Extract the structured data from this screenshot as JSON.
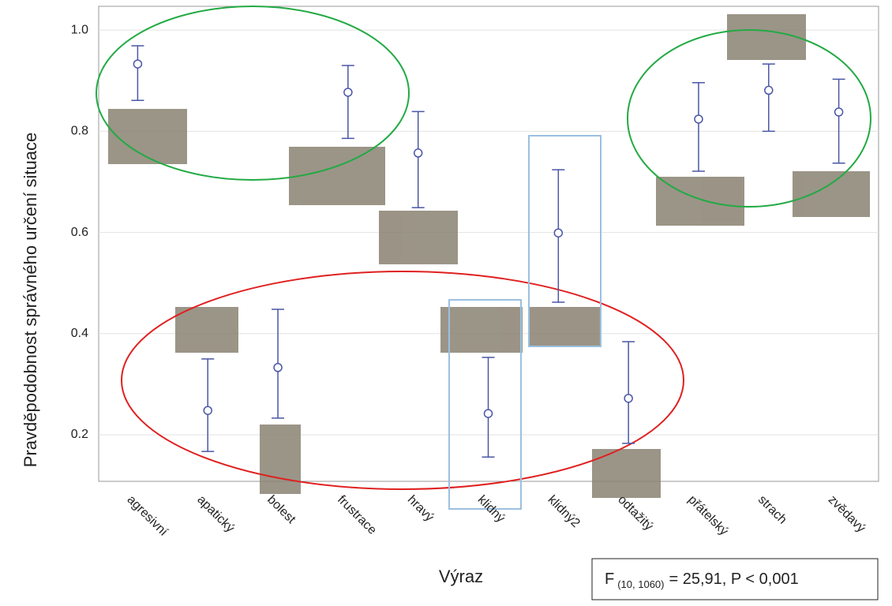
{
  "chart_data": {
    "type": "errorbar",
    "x_label": "Výraz",
    "y_label": "Pravděpodobnost správného určení situace",
    "categories": [
      "agresivní",
      "apatický",
      "bolest",
      "frustrace",
      "hravý",
      "klidný",
      "klidný2",
      "odtažitý",
      "přátelský",
      "strach",
      "zvědavý"
    ],
    "series": [
      {
        "color": "#4a56a6",
        "values": [
          0.933,
          0.248,
          0.333,
          0.877,
          0.757,
          0.242,
          0.599,
          0.272,
          0.824,
          0.881,
          0.838
        ],
        "lower": [
          0.861,
          0.167,
          0.233,
          0.786,
          0.649,
          0.156,
          0.462,
          0.183,
          0.721,
          0.8,
          0.737
        ],
        "upper": [
          0.969,
          0.35,
          0.448,
          0.93,
          0.839,
          0.353,
          0.724,
          0.384,
          0.896,
          0.933,
          0.903
        ]
      }
    ],
    "ylim": [
      0.108,
      1.047
    ],
    "yticks": [
      {
        "value": 0.2,
        "label": "0.2"
      },
      {
        "value": 0.4,
        "label": "0.4"
      },
      {
        "value": 0.6,
        "label": "0.6"
      },
      {
        "value": 0.8,
        "label": "0.8"
      },
      {
        "value": 1.0,
        "label": "1.0"
      }
    ],
    "grid": true,
    "annotation": {
      "main": "F",
      "sub": "(10, 1060)",
      "rest": "= 25,91, P < 0,001"
    }
  }
}
